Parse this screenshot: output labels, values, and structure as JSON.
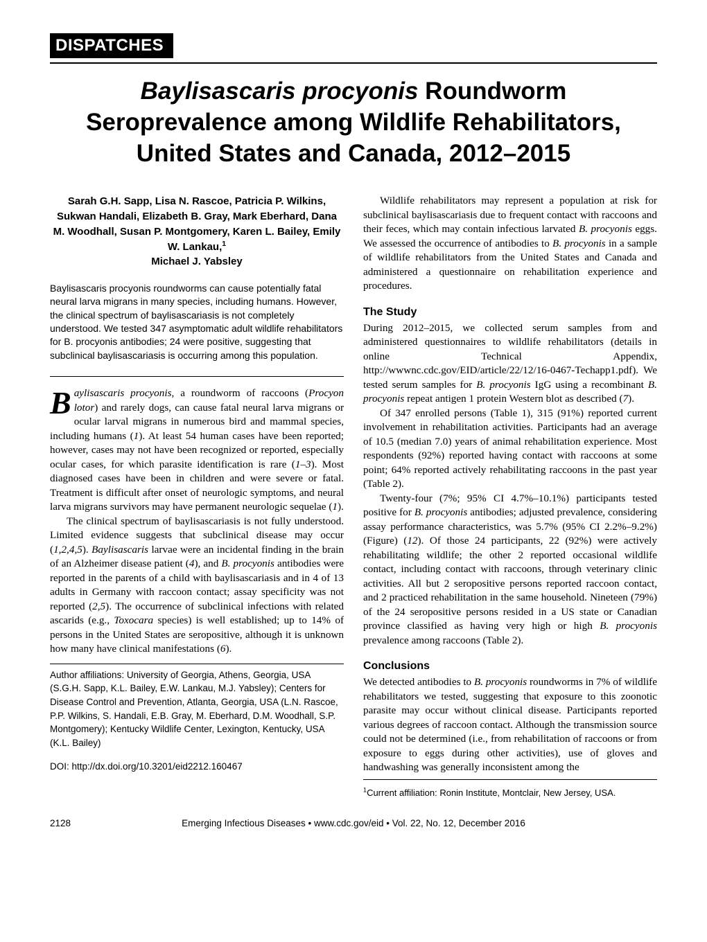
{
  "banner": "DISPATCHES",
  "title_line1": "Baylisascaris procyonis",
  "title_rest": " Roundworm Seroprevalence among Wildlife Rehabilitators, United States and Canada, 2012–2015",
  "authors": "Sarah G.H. Sapp, Lisa N. Rascoe, Patricia P. Wilkins, Sukwan Handali, Elizabeth B. Gray, Mark Eberhard, Dana M. Woodhall, Susan P. Montgomery, Karen L. Bailey, Emily W. Lankau,",
  "authors_sup": "1",
  "authors_last": "Michael J. Yabsley",
  "abstract": "Baylisascaris procyonis roundworms can cause potentially fatal neural larva migrans in many species, including humans. However, the clinical spectrum of baylisascariasis is not completely understood. We tested 347 asymptomatic adult wildlife rehabilitators for B. procyonis antibodies; 24 were positive, suggesting that subclinical baylisascariasis is occurring among this population.",
  "left": {
    "drop_letter": "B",
    "drop_rest_html": "<i>aylisascaris procyonis</i>, a roundworm of raccoons (<i>Procyon lotor</i>) and rarely dogs, can cause fatal neural larva migrans or ocular larval migrans in numerous bird and mammal species, including humans (<i>1</i>). At least 54 human cases have been reported; however, cases may not have been recognized or reported, especially ocular cases, for which parasite identification is rare (<i>1–3</i>). Most diagnosed cases have been in children and were severe or fatal. Treatment is difficult after onset of neurologic symptoms, and neural larva migrans survivors may have permanent neurologic sequelae (<i>1</i>).",
    "p2_html": "The clinical spectrum of baylisascariasis is not fully understood. Limited evidence suggests that subclinical disease may occur (<i>1</i>,<i>2</i>,<i>4</i>,<i>5</i>). <i>Baylisascaris</i> larvae were an incidental finding in the brain of an Alzheimer disease patient (<i>4</i>), and <i>B. procyonis</i> antibodies were reported in the parents of a child with baylisascariasis and in 4 of 13 adults in Germany with raccoon contact; assay specificity was not reported (<i>2</i>,<i>5</i>). The occurrence of subclinical infections with related ascarids (e.g., <i>Toxocara</i> species) is well established; up to 14% of persons in the United States are seropositive, although it is unknown how many have clinical manifestations (<i>6</i>).",
    "affil": "Author affiliations: University of Georgia, Athens, Georgia, USA (S.G.H. Sapp, K.L. Bailey, E.W. Lankau, M.J. Yabsley); Centers for Disease Control and Prevention, Atlanta, Georgia, USA (L.N. Rascoe, P.P. Wilkins, S. Handali, E.B. Gray, M. Eberhard, D.M. Woodhall, S.P. Montgomery); Kentucky Wildlife Center, Lexington, Kentucky, USA (K.L. Bailey)",
    "doi": "DOI: http://dx.doi.org/10.3201/eid2212.160467"
  },
  "right": {
    "p1_html": "Wildlife rehabilitators may represent a population at risk for subclinical baylisascariasis due to frequent contact with raccoons and their feces, which may contain infectious larvated <i>B. procyonis</i> eggs. We assessed the occurrence of antibodies to <i>B. procyonis</i> in a sample of wildlife rehabilitators from the United States and Canada and administered a questionnaire on rehabilitation experience and procedures.",
    "study_head": "The Study",
    "p2_html": "During 2012–2015, we collected serum samples from and administered questionnaires to wildlife rehabilitators (details in online Technical Appendix, http://wwwnc.cdc.gov/EID/article/22/12/16-0467-Techapp1.pdf). We tested serum samples for <i>B. procyonis</i> IgG using a recombinant <i>B. procyonis</i> repeat antigen 1 protein Western blot as described (<i>7</i>).",
    "p3_html": "Of 347 enrolled persons (Table 1), 315 (91%) reported current involvement in rehabilitation activities. Participants had an average of 10.5 (median 7.0) years of animal rehabilitation experience. Most respondents (92%) reported having contact with raccoons at some point; 64% reported actively rehabilitating raccoons in the past year (Table 2).",
    "p4_html": "Twenty-four (7%; 95% CI 4.7%–10.1%) participants tested positive for <i>B. procyonis</i> antibodies; adjusted prevalence, considering assay performance characteristics, was 5.7% (95% CI 2.2%–9.2%) (Figure) (<i>12</i>). Of those 24 participants, 22 (92%) were actively rehabilitating wildlife; the other 2 reported occasional wildlife contact, including contact with raccoons, through veterinary clinic activities. All but 2 seropositive persons reported raccoon contact, and 2 practiced rehabilitation in the same household. Nineteen (79%) of the 24 seropositive persons resided in a US state or Canadian province classified as having very high or high <i>B. procyonis</i> prevalence among raccoons (Table 2).",
    "concl_head": "Conclusions",
    "p5_html": "We detected antibodies to <i>B. procyonis</i> roundworms in 7% of wildlife rehabilitators we tested, suggesting that exposure to this zoonotic parasite may occur without clinical disease. Participants reported various degrees of raccoon contact. Although the transmission source could not be determined (i.e., from rehabilitation of raccoons or from exposure to eggs during other activities), use of gloves and handwashing was generally inconsistent among the",
    "footnote_html": "<sup>1</sup>Current affiliation: Ronin Institute, Montclair, New Jersey, USA."
  },
  "footer": {
    "pagenum": "2128",
    "center": "Emerging Infectious Diseases • www.cdc.gov/eid • Vol. 22, No. 12, December 2016"
  }
}
